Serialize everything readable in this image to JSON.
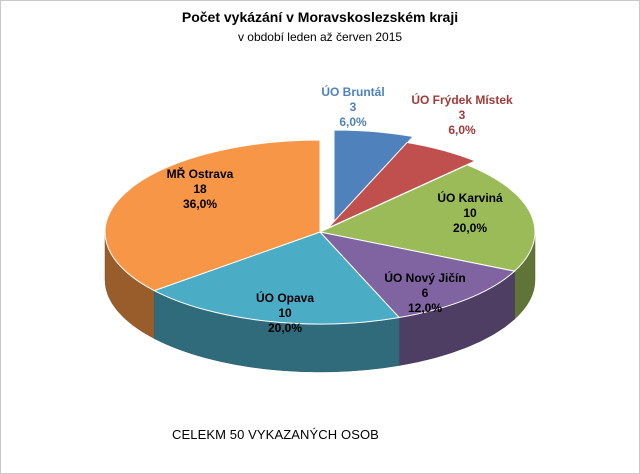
{
  "chart_data": {
    "type": "pie",
    "title": "Počet vykázání v Moravskoslezském kraji",
    "subtitle": "v období leden až červen 2015",
    "slices": [
      {
        "name": "ÚO Bruntál",
        "value": 3,
        "percent": "6,0%",
        "color": "#4f81bd",
        "label_color": "#4f81bd"
      },
      {
        "name": "ÚO Frýdek Místek",
        "value": 3,
        "percent": "6,0%",
        "color": "#c0504d",
        "label_color": "#a33a37"
      },
      {
        "name": "ÚO Karviná",
        "value": 10,
        "percent": "20,0%",
        "color": "#9bbb59",
        "label_color": "#000000"
      },
      {
        "name": "ÚO Nový Jičín",
        "value": 6,
        "percent": "12,0%",
        "color": "#8064a2",
        "label_color": "#000000"
      },
      {
        "name": "ÚO Opava",
        "value": 10,
        "percent": "20,0%",
        "color": "#4bacc6",
        "label_color": "#000000"
      },
      {
        "name": "MŘ Ostrava",
        "value": 18,
        "percent": "36,0%",
        "color": "#f79646",
        "label_color": "#000000"
      }
    ],
    "footnote": "CELEKM  50 VYKAZANÝCH  OSOB"
  }
}
